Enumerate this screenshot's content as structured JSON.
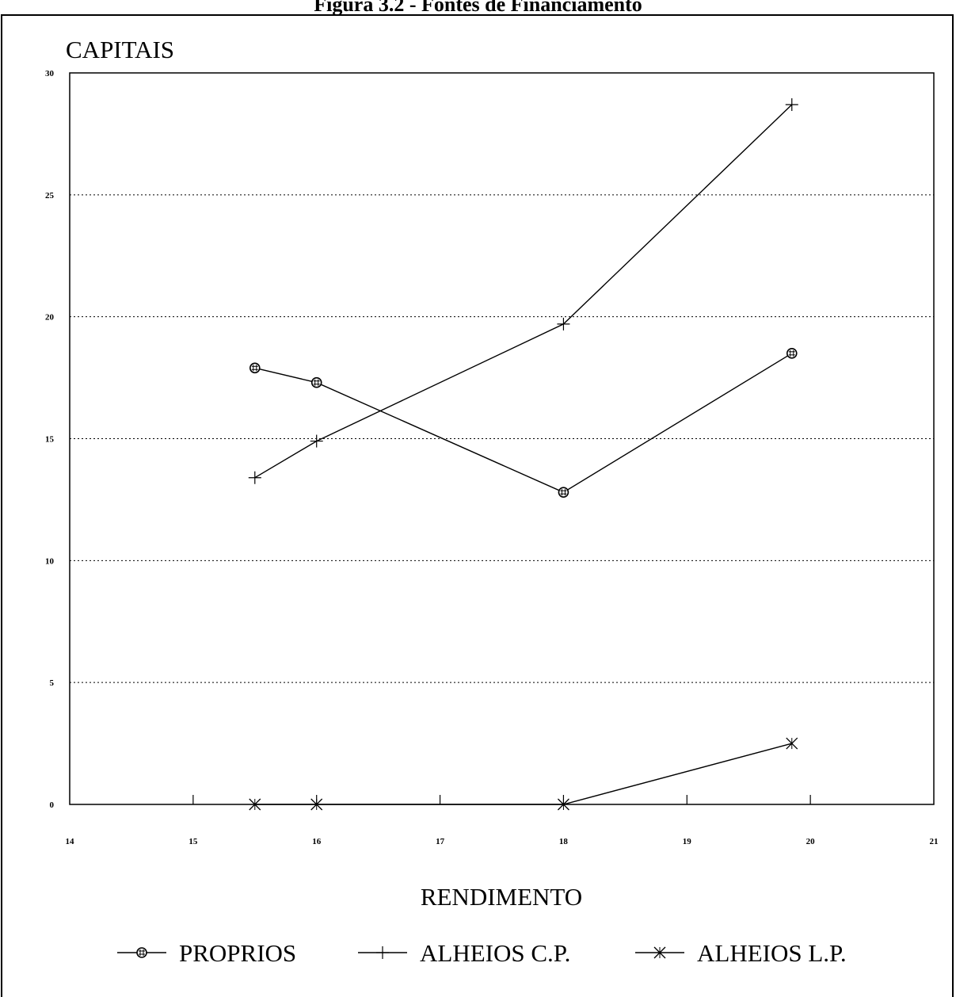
{
  "figure_title": "Figura 3.2 - Fontes de Financiamento",
  "chart_data": {
    "type": "line",
    "ylabel": "CAPITAIS",
    "xlabel": "RENDIMENTO",
    "xlim": [
      14,
      21
    ],
    "ylim": [
      0,
      30
    ],
    "x_ticks": [
      "14",
      "15",
      "16",
      "17",
      "18",
      "19",
      "20",
      "21"
    ],
    "y_ticks": [
      "0",
      "5",
      "10",
      "15",
      "20",
      "25",
      "30"
    ],
    "grid": "horizontal dotted",
    "legend_position": "bottom",
    "series": [
      {
        "name": "PROPRIOS",
        "marker": "circle-hatched",
        "x": [
          15.5,
          16,
          18,
          19.85
        ],
        "y": [
          17.9,
          17.3,
          12.8,
          18.5
        ]
      },
      {
        "name": "ALHEIOS C.P.",
        "marker": "plus",
        "x": [
          15.5,
          16,
          18,
          19.85
        ],
        "y": [
          13.4,
          14.9,
          19.7,
          28.7
        ]
      },
      {
        "name": "ALHEIOS L.P.",
        "marker": "asterisk",
        "x": [
          15.5,
          16,
          18,
          19.85
        ],
        "y": [
          0,
          0,
          0,
          2.5
        ]
      }
    ]
  }
}
